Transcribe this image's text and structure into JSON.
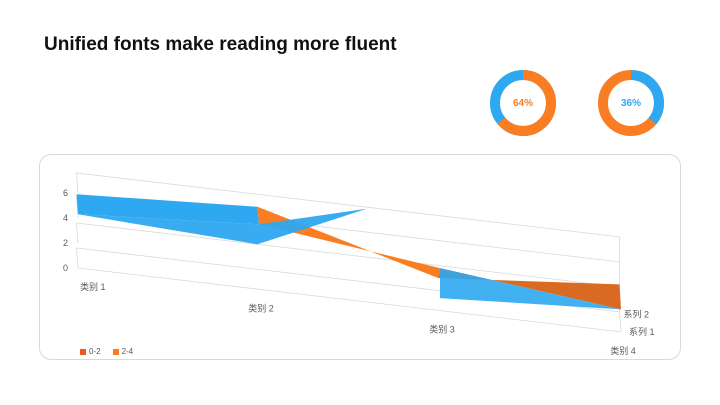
{
  "slide": {
    "title": "Unified fonts make reading more fluent"
  },
  "donuts": [
    {
      "label": "64%",
      "value": 0.64,
      "fg": "#FA7D22",
      "bg": "#2EA8F0"
    },
    {
      "label": "36%",
      "value": 0.36,
      "fg": "#2EA8F0",
      "bg": "#FA7D22"
    }
  ],
  "chart_data": {
    "type": "surface",
    "title": "",
    "categories": [
      "类别 1",
      "类别 2",
      "类别 3",
      "类别 4"
    ],
    "series_axis": [
      "系列 1",
      "系列 2"
    ],
    "z_ticks": [
      "0",
      "2",
      "4",
      "6"
    ],
    "zlim": [
      0,
      6
    ],
    "series": [
      {
        "name": "系列 1",
        "values": [
          4.3,
          5.2,
          3.4,
          1.8
        ]
      },
      {
        "name": "系列 2",
        "values": [
          4.3,
          5.0,
          1.0,
          2.2
        ]
      }
    ],
    "bands": [
      {
        "name": "0-2",
        "color": "#E85C1E"
      },
      {
        "name": "2-4",
        "color": "#FA7D22"
      }
    ],
    "surface_colors": {
      "blue": "#2EA8F0",
      "orange": "#FA7D22",
      "dark_orange": "#DA6A22"
    },
    "grid": true,
    "legend_position": "bottom-left"
  }
}
